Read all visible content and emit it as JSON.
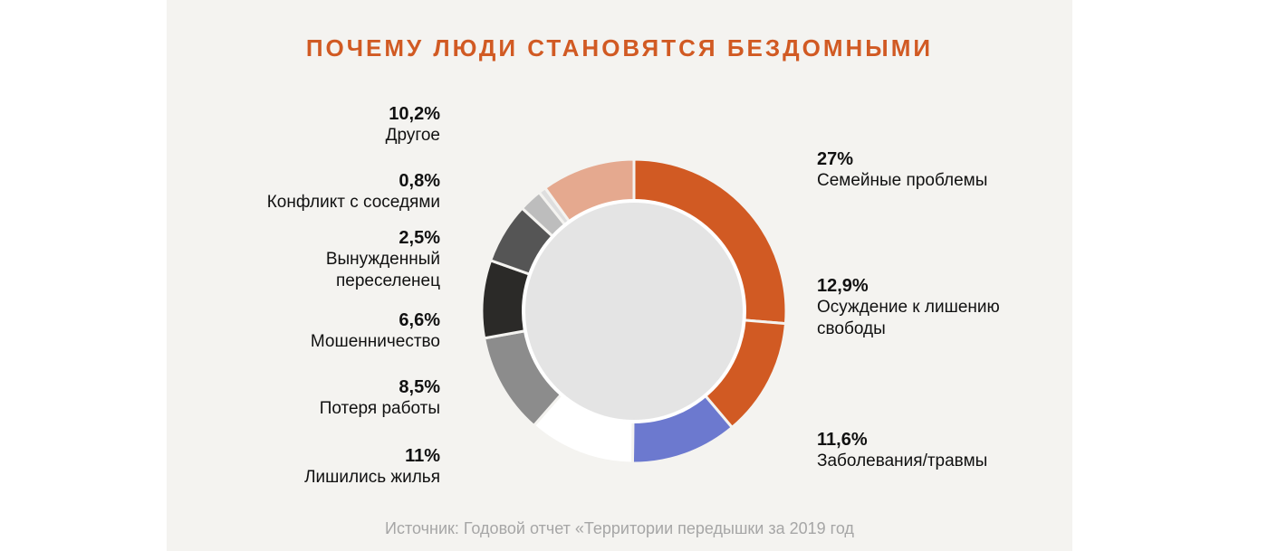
{
  "chart_data": {
    "type": "pie",
    "title": "ПОЧЕМУ ЛЮДИ СТАНОВЯТСЯ БЕЗДОМНЫМИ",
    "source": "Источник: Годовой отчет «Территории передышки за 2019 год",
    "slices": [
      {
        "pct_label": "27%",
        "name": "Семейные проблемы",
        "value": 27,
        "color": "#d15a23"
      },
      {
        "pct_label": "12,9%",
        "name": "Осуждение к лишению свободы",
        "value": 12.9,
        "color": "#d15a23"
      },
      {
        "pct_label": "11,6%",
        "name": "Заболевания/травмы",
        "value": 11.6,
        "color": "#6c79cf"
      },
      {
        "pct_label": "",
        "name": "",
        "value": 11.6,
        "color": "#ffffff"
      },
      {
        "pct_label": "11%",
        "name": "Лишились жилья",
        "value": 11,
        "color": "#8c8c8c"
      },
      {
        "pct_label": "8,5%",
        "name": "Потеря работы",
        "value": 8.5,
        "color": "#2b2a28"
      },
      {
        "pct_label": "6,6%",
        "name": "Мошенничество",
        "value": 6.6,
        "color": "#555555"
      },
      {
        "pct_label": "2,5%",
        "name": "Вынужденный переселенец",
        "value": 2.5,
        "color": "#bdbdbd"
      },
      {
        "pct_label": "0,8%",
        "name": "Конфликт с соседями",
        "value": 0.8,
        "color": "#dedede"
      },
      {
        "pct_label": "10,2%",
        "name": "Другое",
        "value": 10.2,
        "color": "#e5a98f"
      }
    ],
    "center_color": "#e4e4e4"
  }
}
